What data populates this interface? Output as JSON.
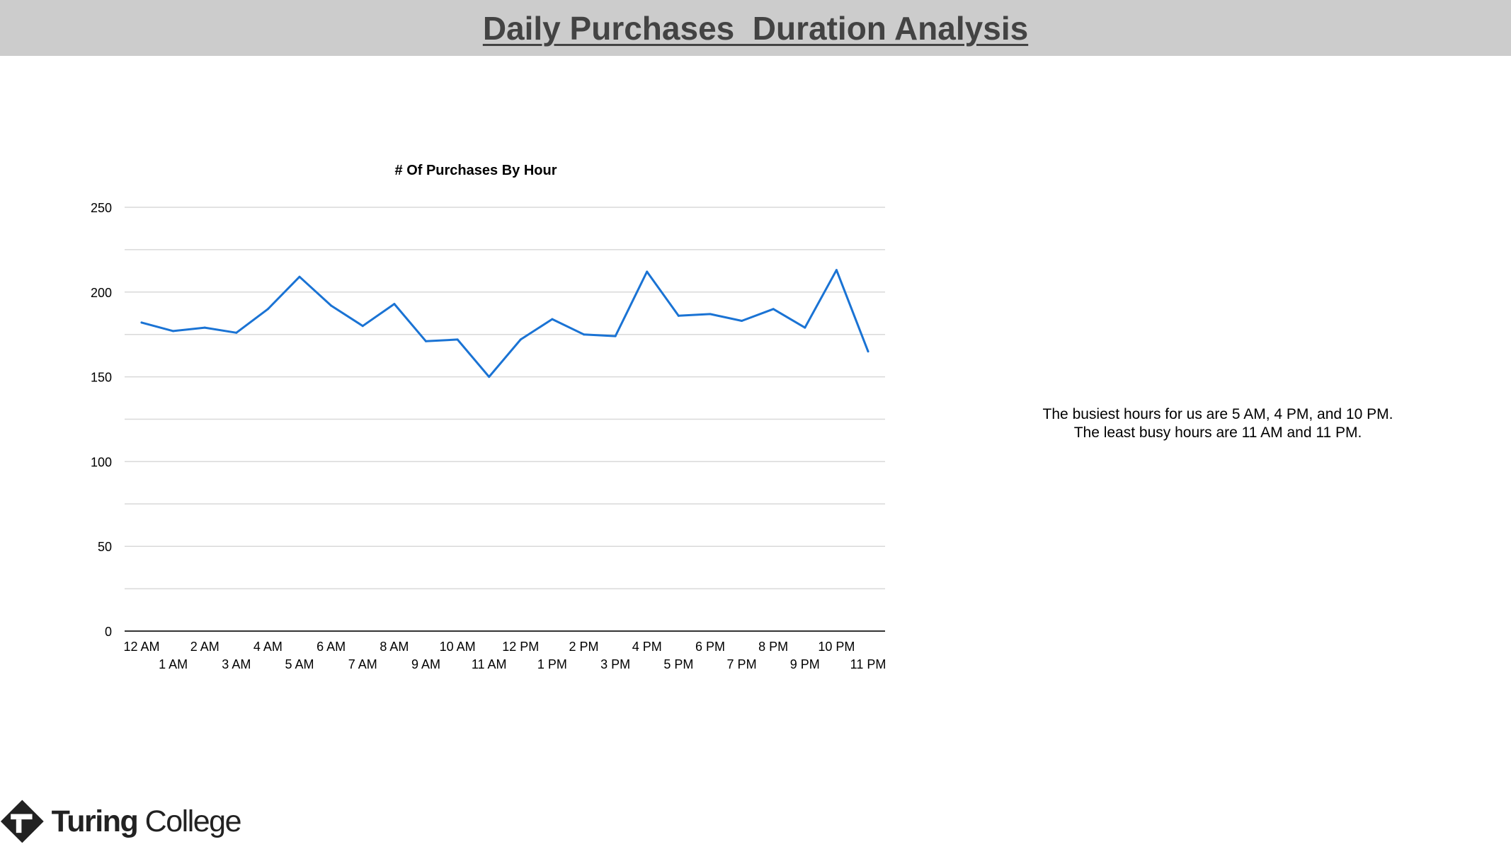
{
  "slide": {
    "title": "Daily Purchases  Duration Analysis",
    "insight_lines": [
      "The busiest hours for us are 5 AM, 4 PM, and 10 PM.",
      "The least busy hours are 11 AM and 11 PM."
    ],
    "logo": {
      "text_strong": "Turing",
      "text_light": " College",
      "icon": "turing-college-logo-icon"
    }
  },
  "colors": {
    "title_bar": "#cccccc",
    "title_text": "#434343",
    "series_line": "#1a73d4",
    "gridline": "#d9d9d9",
    "axis": "#333333"
  },
  "chart_data": {
    "type": "line",
    "title": "# Of Purchases By Hour",
    "xlabel": "",
    "ylabel": "",
    "categories": [
      "12 AM",
      "1 AM",
      "2 AM",
      "3 AM",
      "4 AM",
      "5 AM",
      "6 AM",
      "7 AM",
      "8 AM",
      "9 AM",
      "10 AM",
      "11 AM",
      "12 PM",
      "1 PM",
      "2 PM",
      "3 PM",
      "4 PM",
      "5 PM",
      "6 PM",
      "7 PM",
      "8 PM",
      "9 PM",
      "10 PM",
      "11 PM"
    ],
    "values": [
      182,
      177,
      179,
      176,
      190,
      209,
      192,
      180,
      193,
      171,
      172,
      150,
      172,
      184,
      175,
      174,
      212,
      186,
      187,
      183,
      190,
      179,
      213,
      165
    ],
    "ylim": [
      0,
      250
    ],
    "yticks": [
      0,
      50,
      100,
      150,
      200,
      250
    ],
    "minor_gridlines": [
      25,
      75,
      125,
      175,
      225
    ],
    "grid": true,
    "legend": "none"
  }
}
